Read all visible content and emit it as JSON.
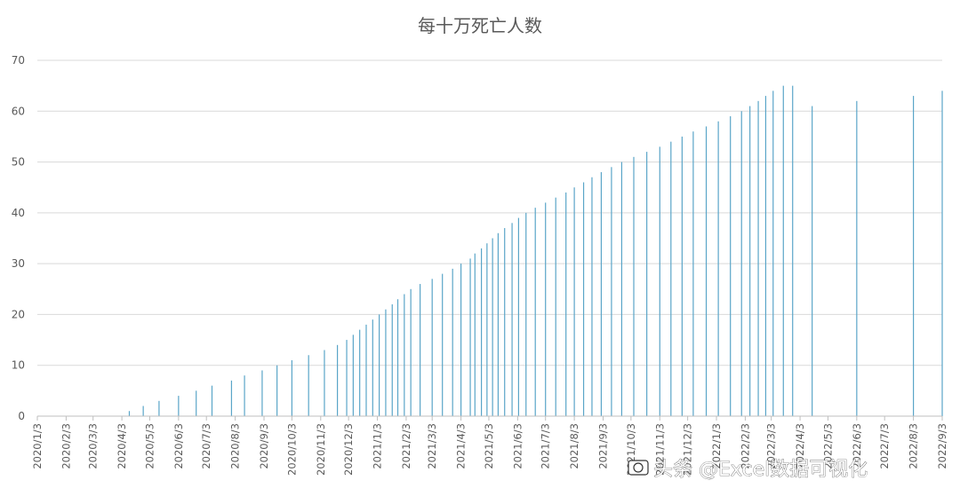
{
  "chart_data": {
    "type": "bar",
    "title": "每十万死亡人数",
    "xlabel": "",
    "ylabel": "",
    "ylim": [
      0,
      70
    ],
    "yticks": [
      0,
      10,
      20,
      30,
      40,
      50,
      60,
      70
    ],
    "grid": true,
    "legend": "none",
    "colors": {
      "bar": "#5aa5c8",
      "grid": "#d9d9d9",
      "axis": "#bfbfbf",
      "text": "#595959"
    },
    "x_tick_labels": [
      "2020/1/3",
      "2020/2/3",
      "2020/3/3",
      "2020/4/3",
      "2020/5/3",
      "2020/6/3",
      "2020/7/3",
      "2020/8/3",
      "2020/9/3",
      "2020/10/3",
      "2020/11/3",
      "2020/12/3",
      "2021/1/3",
      "2021/2/3",
      "2021/3/3",
      "2021/4/3",
      "2021/5/3",
      "2021/6/3",
      "2021/7/3",
      "2021/8/3",
      "2021/9/3",
      "2021/10/3",
      "2021/11/3",
      "2021/12/3",
      "2022/1/3",
      "2022/2/3",
      "2022/3/3",
      "2022/4/3",
      "2022/5/3",
      "2022/6/3",
      "2022/7/3",
      "2022/8/3",
      "2022/9/3"
    ],
    "x_range": [
      "2020/1/3",
      "2022/9/3"
    ],
    "x": [
      "2020/4/11",
      "2020/4/26",
      "2020/5/13",
      "2020/6/3",
      "2020/6/22",
      "2020/7/9",
      "2020/7/30",
      "2020/8/13",
      "2020/9/1",
      "2020/9/17",
      "2020/10/3",
      "2020/10/21",
      "2020/11/7",
      "2020/11/21",
      "2020/12/1",
      "2020/12/8",
      "2020/12/15",
      "2020/12/22",
      "2020/12/29",
      "2021/1/5",
      "2021/1/12",
      "2021/1/19",
      "2021/1/25",
      "2021/2/1",
      "2021/2/8",
      "2021/2/18",
      "2021/3/3",
      "2021/3/14",
      "2021/3/25",
      "2021/4/3",
      "2021/4/13",
      "2021/4/18",
      "2021/4/25",
      "2021/5/1",
      "2021/5/7",
      "2021/5/13",
      "2021/5/20",
      "2021/5/28",
      "2021/6/4",
      "2021/6/12",
      "2021/6/22",
      "2021/7/3",
      "2021/7/14",
      "2021/7/25",
      "2021/8/3",
      "2021/8/13",
      "2021/8/22",
      "2021/9/1",
      "2021/9/12",
      "2021/9/23",
      "2021/10/6",
      "2021/10/20",
      "2021/11/3",
      "2021/11/15",
      "2021/11/27",
      "2021/12/9",
      "2021/12/23",
      "2022/1/5",
      "2022/1/18",
      "2022/1/30",
      "2022/2/8",
      "2022/2/17",
      "2022/2/25",
      "2022/3/5",
      "2022/3/16",
      "2022/3/26",
      "2022/4/16",
      "2022/6/3",
      "2022/8/3",
      "2022/9/3"
    ],
    "values": [
      1,
      2,
      3,
      4,
      5,
      6,
      7,
      8,
      9,
      10,
      11,
      12,
      13,
      14,
      15,
      16,
      17,
      18,
      19,
      20,
      21,
      22,
      23,
      24,
      25,
      26,
      27,
      28,
      29,
      30,
      31,
      32,
      33,
      34,
      35,
      36,
      37,
      38,
      39,
      40,
      41,
      42,
      43,
      44,
      45,
      46,
      47,
      48,
      49,
      50,
      51,
      52,
      53,
      54,
      55,
      56,
      57,
      58,
      59,
      60,
      61,
      62,
      63,
      64,
      65,
      65,
      61,
      62,
      63,
      64
    ]
  },
  "watermark": {
    "text": "头条 @Excel数据可视化",
    "icon": "camera-icon"
  }
}
